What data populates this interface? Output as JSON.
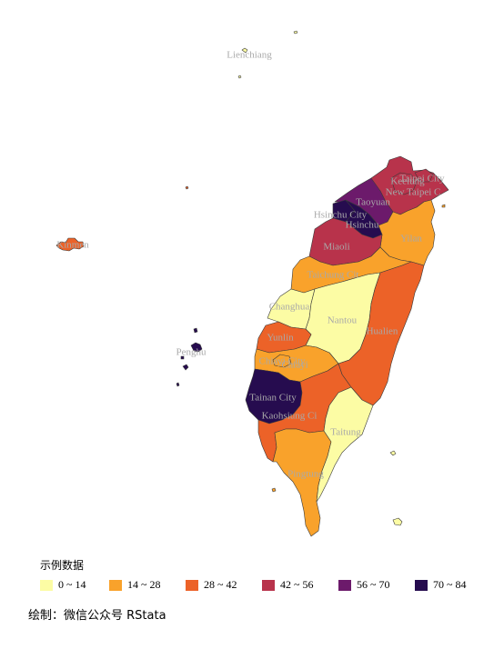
{
  "colors": {
    "bin_0_14": "#fcfca4",
    "bin_14_28": "#f9a22b",
    "bin_28_42": "#ec6228",
    "bin_42_56": "#b8334b",
    "bin_56_70": "#6c1a6b",
    "bin_70_84": "#260c4f"
  },
  "legend": {
    "title": "示例数据",
    "items": [
      {
        "label": "0 ~ 14",
        "color": "#fcfca4"
      },
      {
        "label": "14 ~ 28",
        "color": "#f9a22b"
      },
      {
        "label": "28 ~ 42",
        "color": "#ec6228"
      },
      {
        "label": "42 ~ 56",
        "color": "#b8334b"
      },
      {
        "label": "56 ~ 70",
        "color": "#6c1a6b"
      },
      {
        "label": "70 ~ 84",
        "color": "#260c4f"
      }
    ]
  },
  "regions": {
    "lienchiang": "Lienchiang",
    "kinmen": "Kinmen",
    "penghu": "Penghu",
    "keelung": "Keelung",
    "taipei": "Taipei City",
    "new_taipei": "New Taipei C",
    "taoyuan": "Taoyuan",
    "hsinchu_city": "Hsinchu City",
    "hsinchu": "Hsinchu",
    "yilan": "Yilan",
    "miaoli": "Miaoli",
    "taichung": "Taichung Cit",
    "changhua": "Changhua",
    "nantou": "Nantou",
    "hualien": "Hualien",
    "yunlin": "Yunlin",
    "chiayi_city": "Chiayi City",
    "chiayi": "Chiayi",
    "tainan": "Tainan City",
    "kaohsiung": "Kaohsiung Ci",
    "taitung": "Taitung",
    "pingtung": "Pingtung"
  },
  "caption": "绘制：微信公众号 RStata"
}
